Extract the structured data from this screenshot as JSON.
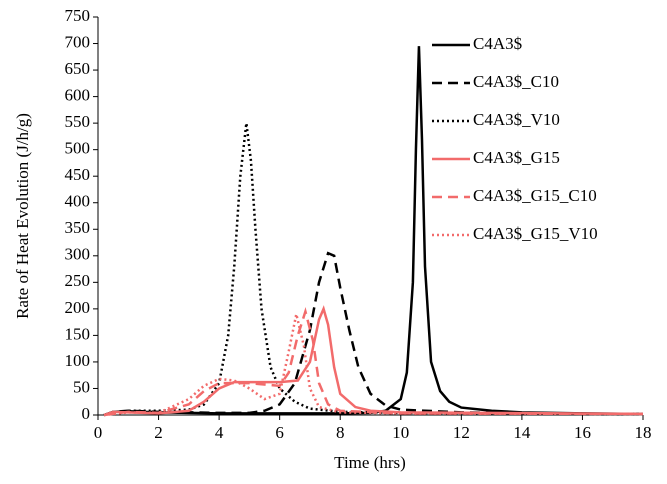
{
  "chart_data": {
    "type": "line",
    "xlabel": "Time (hrs)",
    "ylabel": "Rate of Heat Evolution (J/h/g)",
    "xlim": [
      0,
      18
    ],
    "xticks": [
      0,
      2,
      4,
      6,
      8,
      10,
      12,
      14,
      16,
      18
    ],
    "ylim": [
      0,
      750
    ],
    "yticks": [
      0,
      50,
      100,
      150,
      200,
      250,
      300,
      350,
      400,
      450,
      500,
      550,
      600,
      650,
      700,
      750
    ],
    "legend": "upper right",
    "series": [
      {
        "name": "C4A3$",
        "color": "#000000",
        "dash": "solid",
        "x": [
          0.2,
          0.5,
          1,
          2,
          3,
          4,
          5,
          6,
          7,
          8,
          9,
          9.5,
          10,
          10.2,
          10.4,
          10.5,
          10.6,
          10.7,
          10.8,
          11,
          11.3,
          11.6,
          12,
          13,
          14,
          16,
          18
        ],
        "values": [
          0,
          6,
          7,
          5,
          4,
          3,
          3,
          3,
          3,
          3,
          4,
          8,
          30,
          80,
          250,
          500,
          695,
          520,
          280,
          100,
          45,
          25,
          14,
          8,
          5,
          3,
          2
        ]
      },
      {
        "name": "C4A3$_C10",
        "color": "#000000",
        "dash": "dashed",
        "x": [
          0.2,
          0.5,
          1,
          2,
          3,
          4,
          5,
          5.5,
          6,
          6.5,
          7,
          7.3,
          7.6,
          7.8,
          8,
          8.3,
          8.6,
          9,
          9.5,
          10,
          12,
          14,
          18
        ],
        "values": [
          0,
          6,
          8,
          6,
          5,
          4,
          4,
          8,
          20,
          60,
          160,
          250,
          305,
          300,
          240,
          160,
          90,
          40,
          18,
          10,
          5,
          3,
          2
        ]
      },
      {
        "name": "C4A3$_V10",
        "color": "#000000",
        "dash": "dotted",
        "x": [
          0.2,
          1,
          2,
          3,
          3.5,
          4,
          4.3,
          4.5,
          4.7,
          4.9,
          5.05,
          5.2,
          5.4,
          5.7,
          6,
          6.5,
          7,
          8,
          10,
          18
        ],
        "values": [
          0,
          8,
          8,
          10,
          20,
          60,
          150,
          280,
          450,
          550,
          480,
          350,
          200,
          90,
          50,
          25,
          12,
          6,
          4,
          2
        ]
      },
      {
        "name": "C4A3$_G15",
        "color": "#f26b6b",
        "dash": "solid",
        "x": [
          0.2,
          0.5,
          1,
          2,
          3,
          3.5,
          4,
          4.5,
          5,
          6,
          6.6,
          7,
          7.3,
          7.45,
          7.6,
          7.8,
          8,
          8.5,
          9,
          10,
          18
        ],
        "values": [
          0,
          6,
          5,
          3,
          8,
          25,
          50,
          62,
          62,
          62,
          65,
          100,
          180,
          200,
          170,
          90,
          40,
          15,
          8,
          5,
          2
        ]
      },
      {
        "name": "C4A3$_G15_C10",
        "color": "#f26b6b",
        "dash": "dashed",
        "x": [
          0.2,
          1,
          2,
          3,
          3.5,
          4,
          5,
          6,
          6.3,
          6.6,
          6.85,
          7.1,
          7.3,
          7.6,
          8,
          10,
          18
        ],
        "values": [
          0,
          6,
          4,
          20,
          45,
          60,
          60,
          55,
          80,
          150,
          195,
          140,
          60,
          20,
          8,
          3,
          2
        ]
      },
      {
        "name": "C4A3$_G15_V10",
        "color": "#f26b6b",
        "dash": "dotted",
        "x": [
          0.2,
          1,
          2,
          3,
          3.5,
          4,
          4.5,
          5,
          5.5,
          6,
          6.3,
          6.55,
          6.8,
          7,
          7.3,
          8,
          10,
          18
        ],
        "values": [
          0,
          5,
          4,
          30,
          55,
          68,
          65,
          50,
          30,
          40,
          120,
          190,
          130,
          50,
          15,
          5,
          3,
          2
        ]
      }
    ]
  }
}
